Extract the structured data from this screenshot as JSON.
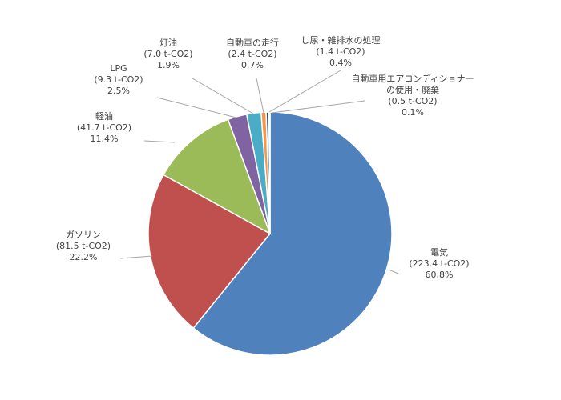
{
  "chart_data": {
    "type": "pie",
    "slices": [
      {
        "label": "電気",
        "value_text": "(223.4 t-CO2)",
        "percent_text": "60.8%",
        "value": 223.4,
        "percent": 60.8,
        "color": "#4f81bd"
      },
      {
        "label": "ガソリン",
        "value_text": "(81.5 t-CO2)",
        "percent_text": "22.2%",
        "value": 81.5,
        "percent": 22.2,
        "color": "#c0504d"
      },
      {
        "label": "軽油",
        "value_text": "(41.7 t-CO2)",
        "percent_text": "11.4%",
        "value": 41.7,
        "percent": 11.4,
        "color": "#9bbb59"
      },
      {
        "label": "LPG",
        "value_text": "(9.3 t-CO2)",
        "percent_text": "2.5%",
        "value": 9.3,
        "percent": 2.5,
        "color": "#8064a2"
      },
      {
        "label": "灯油",
        "value_text": "(7.0 t-CO2)",
        "percent_text": "1.9%",
        "value": 7.0,
        "percent": 1.9,
        "color": "#4bacc6"
      },
      {
        "label": "自動車の走行",
        "value_text": "(2.4 t-CO2)",
        "percent_text": "0.7%",
        "value": 2.4,
        "percent": 0.7,
        "color": "#f79646"
      },
      {
        "label": "し尿・雑排水の処理",
        "value_text": "(1.4 t-CO2)",
        "percent_text": "0.4%",
        "value": 1.4,
        "percent": 0.4,
        "color": "#2c4d75"
      },
      {
        "label": "自動車用エアコンディショナーの使用・廃棄",
        "label_lines": [
          "自動車用エアコンディショナー",
          "の使用・廃棄"
        ],
        "value_text": "(0.5 t-CO2)",
        "percent_text": "0.1%",
        "value": 0.5,
        "percent": 0.1,
        "color": "#772c2a"
      }
    ]
  }
}
